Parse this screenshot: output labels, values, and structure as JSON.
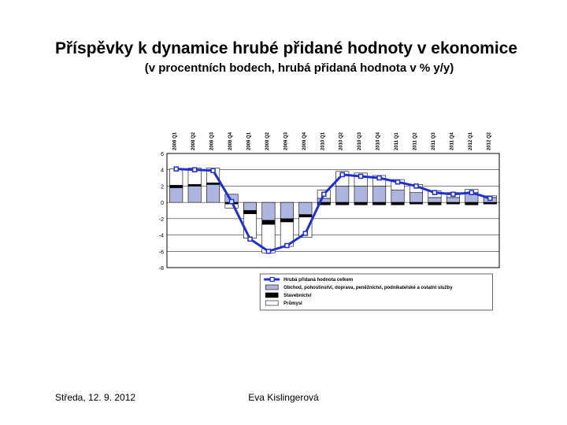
{
  "title": "Příspěvky k dynamice hrubé přidané hodnoty v ekonomice",
  "subtitle": "(v procentních bodech, hrubá přidaná hodnota v % y/y)",
  "footer_left": "Středa, 12. 9. 2012",
  "footer_center": "Eva Kislingerová",
  "chart": {
    "type": "stacked-bar-with-line",
    "background": "#ffffff",
    "plot_border": "#000000",
    "grid_color": "#000000",
    "categories": [
      "2008 Q1",
      "2008 Q2",
      "2008 Q3",
      "2008 Q4",
      "2009 Q1",
      "2009 Q2",
      "2009 Q3",
      "2009 Q4",
      "2010 Q1",
      "2010 Q2",
      "2010 Q3",
      "2010 Q4",
      "2011 Q1",
      "2011 Q2",
      "2011 Q3",
      "2011 Q4",
      "2012 Q1",
      "2012 Q2"
    ],
    "y_min": -8,
    "y_max": 6,
    "y_step": 2,
    "legend": {
      "line": "Hrubá přidaná hodnota celkem",
      "series_a": "Obchod, pohostinství, doprava, peněžnictví, podnikatelské a ostatní služby",
      "series_b": "Stavebnictví",
      "series_c": "Průmysl"
    },
    "colors": {
      "series_a": "#aeb6e0",
      "series_b": "#000000",
      "series_c": "#ffffff",
      "bar_border": "#000000",
      "line": "#2030d0",
      "line_point_fill": "#ffffff"
    },
    "series": {
      "a": [
        1.8,
        2.0,
        2.2,
        1.0,
        -1.0,
        -2.2,
        -2.0,
        -1.5,
        0.5,
        2.0,
        2.0,
        2.0,
        1.5,
        1.2,
        0.6,
        0.6,
        1.2,
        0.6
      ],
      "b": [
        0.3,
        0.2,
        0.2,
        -0.2,
        -0.4,
        -0.5,
        -0.4,
        -0.3,
        -0.3,
        -0.3,
        -0.3,
        -0.3,
        -0.3,
        -0.2,
        -0.3,
        -0.2,
        -0.3,
        -0.2
      ],
      "c": [
        2.0,
        2.0,
        1.8,
        -0.5,
        -3.0,
        -3.5,
        -3.0,
        -2.5,
        1.0,
        1.8,
        1.6,
        1.3,
        1.3,
        1.0,
        0.8,
        0.6,
        0.4,
        0.2
      ]
    },
    "line_values": [
      4.1,
      4.0,
      3.9,
      0.1,
      -4.5,
      -6.0,
      -5.3,
      -3.8,
      1.0,
      3.4,
      3.2,
      3.0,
      2.5,
      2.0,
      1.2,
      1.0,
      1.2,
      0.5
    ],
    "cat_label_fontsize": 6,
    "axis_label_fontsize": 7,
    "legend_fontsize": 6
  }
}
